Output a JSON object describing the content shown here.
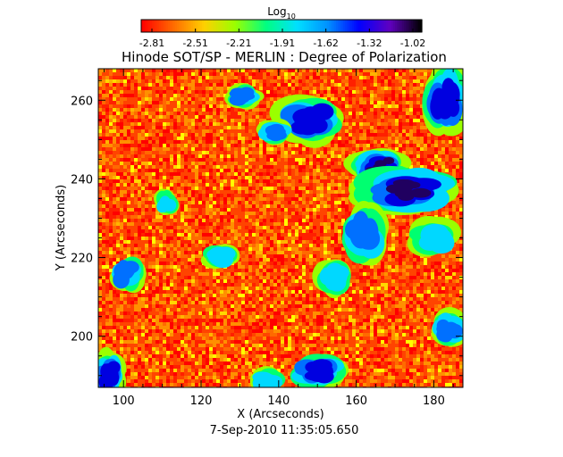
{
  "chart_data": {
    "type": "heatmap",
    "title": "Hinode SOT/SP - MERLIN : Degree of Polarization",
    "colorbar": {
      "label_base": "Log",
      "label_sub": "10",
      "ticks": [
        "-2.81",
        "-2.51",
        "-2.21",
        "-1.91",
        "-1.62",
        "-1.32",
        "-1.02"
      ],
      "range": [
        -2.81,
        -1.02
      ],
      "colors": [
        "#ff0000",
        "#ff6a00",
        "#ffd000",
        "#9aff00",
        "#00ff80",
        "#00e0ff",
        "#0090ff",
        "#0000ff",
        "#6000c0",
        "#000000"
      ]
    },
    "xlabel": "X (Arcseconds)",
    "ylabel": "Y (Arcseconds)",
    "xlim": [
      93.5,
      187.5
    ],
    "ylim": [
      187,
      268
    ],
    "xticks": [
      "100",
      "120",
      "140",
      "160",
      "180"
    ],
    "yticks": [
      "200",
      "220",
      "240",
      "260"
    ],
    "timestamp": "7-Sep-2010 11:35:05.650",
    "grid": false,
    "background_colors": [
      "#ff0000",
      "#ff2000",
      "#ff4400",
      "#ff6a00",
      "#ff9000",
      "#ffb400",
      "#ffd800",
      "#ffff00"
    ],
    "regions": [
      {
        "x": 148,
        "y": 255,
        "rx": 6,
        "ry": 4,
        "level": 0.85
      },
      {
        "x": 166,
        "y": 243,
        "rx": 5,
        "ry": 3,
        "level": 0.95
      },
      {
        "x": 173,
        "y": 237,
        "rx": 9,
        "ry": 4,
        "level": 0.95
      },
      {
        "x": 183,
        "y": 260,
        "rx": 4,
        "ry": 6,
        "level": 0.9
      },
      {
        "x": 162,
        "y": 226,
        "rx": 4,
        "ry": 5,
        "level": 0.7
      },
      {
        "x": 150,
        "y": 191,
        "rx": 5,
        "ry": 3,
        "level": 0.85
      },
      {
        "x": 131,
        "y": 261,
        "rx": 3,
        "ry": 2,
        "level": 0.7
      },
      {
        "x": 139,
        "y": 252,
        "rx": 3,
        "ry": 2,
        "level": 0.65
      },
      {
        "x": 96,
        "y": 190,
        "rx": 3,
        "ry": 4,
        "level": 0.75
      },
      {
        "x": 101,
        "y": 216,
        "rx": 3,
        "ry": 3,
        "level": 0.6
      },
      {
        "x": 111,
        "y": 234,
        "rx": 2,
        "ry": 2,
        "level": 0.55
      },
      {
        "x": 184,
        "y": 202,
        "rx": 3,
        "ry": 3,
        "level": 0.6
      },
      {
        "x": 125,
        "y": 220,
        "rx": 3,
        "ry": 2,
        "level": 0.45
      },
      {
        "x": 137,
        "y": 189,
        "rx": 3,
        "ry": 2,
        "level": 0.5
      },
      {
        "x": 154,
        "y": 215,
        "rx": 3,
        "ry": 3,
        "level": 0.45
      },
      {
        "x": 180,
        "y": 225,
        "rx": 4,
        "ry": 3,
        "level": 0.5
      }
    ]
  }
}
